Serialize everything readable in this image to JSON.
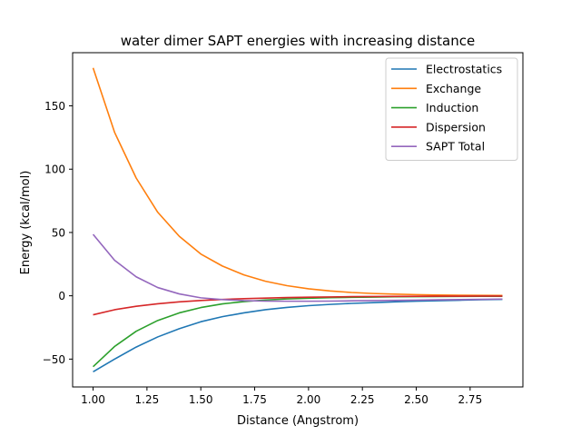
{
  "chart_data": {
    "type": "line",
    "title": "water dimer SAPT energies with increasing distance",
    "xlabel": "Distance (Angstrom)",
    "ylabel": "Energy (kcal/mol)",
    "xlim": [
      0.905,
      2.995
    ],
    "ylim": [
      -72,
      192
    ],
    "x_ticks": [
      "1.00",
      "1.25",
      "1.50",
      "1.75",
      "2.00",
      "2.25",
      "2.50",
      "2.75"
    ],
    "x_tick_values": [
      1.0,
      1.25,
      1.5,
      1.75,
      2.0,
      2.25,
      2.5,
      2.75
    ],
    "y_ticks": [
      "−50",
      "0",
      "50",
      "100",
      "150"
    ],
    "y_tick_values": [
      -50,
      0,
      50,
      100,
      150
    ],
    "grid": false,
    "legend_position": "top-right",
    "x": [
      1.0,
      1.1,
      1.2,
      1.3,
      1.4,
      1.5,
      1.6,
      1.7,
      1.8,
      1.9,
      2.0,
      2.1,
      2.2,
      2.3,
      2.4,
      2.5,
      2.6,
      2.7,
      2.8,
      2.9
    ],
    "series": [
      {
        "name": "Electrostatics",
        "color": "#1f77b4",
        "values": [
          -60.0,
          -50.0,
          -40.5,
          -32.5,
          -26.0,
          -20.5,
          -16.5,
          -13.5,
          -11.0,
          -9.2,
          -7.8,
          -6.8,
          -6.0,
          -5.4,
          -4.8,
          -4.3,
          -3.9,
          -3.5,
          -3.1,
          -2.8
        ]
      },
      {
        "name": "Exchange",
        "color": "#ff7f0e",
        "values": [
          180.0,
          129.0,
          93.0,
          66.0,
          47.0,
          33.0,
          23.5,
          16.5,
          11.5,
          8.0,
          5.5,
          3.8,
          2.6,
          1.8,
          1.3,
          0.9,
          0.6,
          0.4,
          0.3,
          0.2
        ]
      },
      {
        "name": "Induction",
        "color": "#2ca02c",
        "values": [
          -56.0,
          -40.0,
          -28.0,
          -19.5,
          -13.5,
          -9.3,
          -6.4,
          -4.6,
          -3.3,
          -2.5,
          -1.9,
          -1.5,
          -1.2,
          -1.0,
          -0.8,
          -0.7,
          -0.6,
          -0.5,
          -0.4,
          -0.4
        ]
      },
      {
        "name": "Dispersion",
        "color": "#d62728",
        "values": [
          -15.0,
          -11.0,
          -8.3,
          -6.3,
          -4.8,
          -3.7,
          -2.9,
          -2.3,
          -1.8,
          -1.4,
          -1.1,
          -0.9,
          -0.7,
          -0.6,
          -0.5,
          -0.4,
          -0.3,
          -0.3,
          -0.2,
          -0.2
        ]
      },
      {
        "name": "SAPT Total",
        "color": "#9467bd",
        "values": [
          48.5,
          28.0,
          15.0,
          6.5,
          1.5,
          -1.6,
          -3.0,
          -3.8,
          -4.2,
          -4.3,
          -4.3,
          -4.2,
          -4.0,
          -3.8,
          -3.6,
          -3.4,
          -3.2,
          -3.0,
          -2.8,
          -2.6
        ]
      }
    ]
  }
}
